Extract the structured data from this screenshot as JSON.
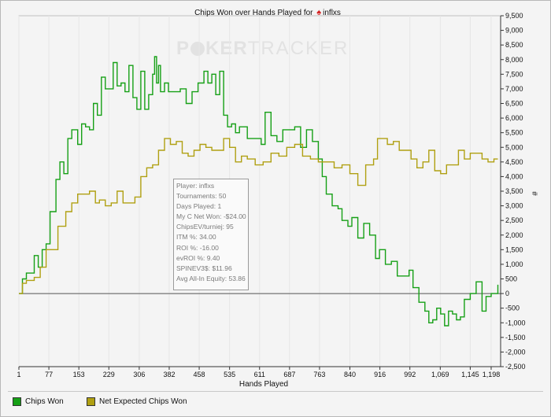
{
  "title": {
    "prefix": "Chips Won over Hands Played for",
    "player": "inflxs"
  },
  "watermark": {
    "part1": "P",
    "part2": "KER",
    "part3": "TRACKER"
  },
  "tooltip": {
    "lines": [
      "Player: inflxs",
      "Tournaments: 50",
      "Days Played: 1",
      "My C Net Won: -$24.00",
      "ChipsEV/turniej: 95",
      "ITM %: 34.00",
      "ROI %: -16.00",
      "evROI %: 9.40",
      "SPINEV3$: $11.96",
      "Avg All-In Equity: 53.86"
    ]
  },
  "legend": [
    {
      "label": "Chips Won",
      "color": "#16a016"
    },
    {
      "label": "Net Expected Chips Won",
      "color": "#b0a012"
    }
  ],
  "chart_data": {
    "type": "line",
    "xlabel": "Hands Played",
    "ylabel": "#",
    "xlim": [
      1,
      1222
    ],
    "ylim": [
      -2500,
      9500
    ],
    "x_ticks": [
      1,
      77,
      153,
      229,
      306,
      382,
      458,
      535,
      611,
      687,
      763,
      840,
      916,
      992,
      1069,
      1145,
      1198
    ],
    "x_tick_labels": [
      "1",
      "77",
      "153",
      "229",
      "306",
      "382",
      "458",
      "535",
      "611",
      "687",
      "763",
      "840",
      "916",
      "992",
      "1,069",
      "1,145",
      "1,198"
    ],
    "y_ticks": [
      -2500,
      -2000,
      -1500,
      -1000,
      -500,
      0,
      500,
      1000,
      1500,
      2000,
      2500,
      3000,
      3500,
      4000,
      4500,
      5000,
      5500,
      6000,
      6500,
      7000,
      7500,
      8000,
      8500,
      9000,
      9500
    ],
    "y_tick_labels": [
      "-2,500",
      "-2,000",
      "-1,500",
      "-1,000",
      "-500",
      "0",
      "500",
      "1,000",
      "1,500",
      "2,000",
      "2,500",
      "3,000",
      "3,500",
      "4,000",
      "4,500",
      "5,000",
      "5,500",
      "6,000",
      "6,500",
      "7,000",
      "7,500",
      "8,000",
      "8,500",
      "9,000",
      "9,500"
    ],
    "grid": "vertical",
    "legend_position": "bottom-left",
    "series": [
      {
        "name": "Chips Won",
        "color": "#16a016",
        "x": [
          1,
          10,
          20,
          40,
          50,
          60,
          70,
          80,
          95,
          105,
          115,
          125,
          135,
          150,
          160,
          170,
          180,
          190,
          200,
          210,
          220,
          240,
          250,
          260,
          270,
          280,
          290,
          300,
          310,
          320,
          330,
          340,
          345,
          350,
          355,
          360,
          370,
          380,
          395,
          410,
          425,
          440,
          455,
          470,
          480,
          490,
          500,
          510,
          520,
          530,
          540,
          550,
          560,
          580,
          600,
          615,
          625,
          640,
          655,
          670,
          685,
          700,
          715,
          730,
          745,
          760,
          770,
          780,
          795,
          810,
          820,
          835,
          845,
          860,
          875,
          890,
          905,
          915,
          930,
          945,
          960,
          975,
          990,
          1000,
          1015,
          1030,
          1040,
          1050,
          1060,
          1070,
          1080,
          1090,
          1100,
          1110,
          1120,
          1130,
          1145,
          1160,
          1175,
          1185,
          1198,
          1215
        ],
        "y": [
          0,
          500,
          700,
          1300,
          900,
          1500,
          1700,
          2800,
          3900,
          4500,
          4100,
          5300,
          5600,
          5100,
          5800,
          5700,
          5600,
          6500,
          6100,
          7400,
          7000,
          7900,
          7100,
          7200,
          6900,
          7800,
          6700,
          6300,
          7600,
          6300,
          6800,
          7500,
          8100,
          7200,
          7800,
          6900,
          7200,
          6900,
          6900,
          7000,
          6500,
          6900,
          7200,
          7600,
          7200,
          7500,
          6800,
          7600,
          6100,
          5700,
          5800,
          5500,
          5700,
          5300,
          5300,
          5100,
          6200,
          5400,
          5200,
          5600,
          5600,
          5700,
          5000,
          5600,
          5200,
          4600,
          4000,
          3400,
          3000,
          2900,
          2500,
          2300,
          2600,
          1900,
          2400,
          2000,
          1200,
          1500,
          1000,
          1100,
          600,
          600,
          800,
          200,
          -300,
          -600,
          -1000,
          -900,
          -500,
          -700,
          -1100,
          -600,
          -700,
          -900,
          -800,
          -200,
          0,
          400,
          -600,
          -100,
          0,
          300
        ]
      },
      {
        "name": "Net Expected Chips Won",
        "color": "#b0a012",
        "x": [
          1,
          10,
          20,
          40,
          55,
          70,
          85,
          100,
          110,
          120,
          135,
          150,
          165,
          180,
          195,
          205,
          220,
          235,
          250,
          265,
          280,
          295,
          310,
          325,
          340,
          355,
          370,
          385,
          400,
          415,
          430,
          445,
          460,
          475,
          490,
          505,
          520,
          535,
          550,
          565,
          580,
          600,
          620,
          640,
          660,
          680,
          700,
          720,
          740,
          760,
          780,
          800,
          820,
          840,
          860,
          880,
          900,
          910,
          920,
          935,
          950,
          965,
          980,
          995,
          1010,
          1025,
          1040,
          1055,
          1070,
          1085,
          1100,
          1115,
          1130,
          1145,
          1160,
          1175,
          1190,
          1205,
          1215
        ],
        "y": [
          0,
          350,
          450,
          550,
          900,
          1500,
          1500,
          2300,
          2300,
          2800,
          3100,
          3400,
          3400,
          3500,
          3100,
          3200,
          3000,
          3100,
          3500,
          3100,
          3100,
          3300,
          4000,
          4300,
          4400,
          4900,
          5300,
          5100,
          5200,
          4800,
          4700,
          4900,
          5100,
          5000,
          4900,
          4900,
          5300,
          5000,
          4500,
          4700,
          4600,
          4400,
          4500,
          4800,
          4700,
          5000,
          5100,
          4700,
          4600,
          4500,
          4500,
          4300,
          4400,
          4100,
          3700,
          4400,
          4600,
          5300,
          5300,
          5100,
          5200,
          4900,
          4900,
          4600,
          4300,
          4500,
          4900,
          4200,
          4100,
          4400,
          4400,
          4900,
          4600,
          4800,
          4800,
          4600,
          4500,
          4600,
          4600
        ]
      }
    ]
  }
}
